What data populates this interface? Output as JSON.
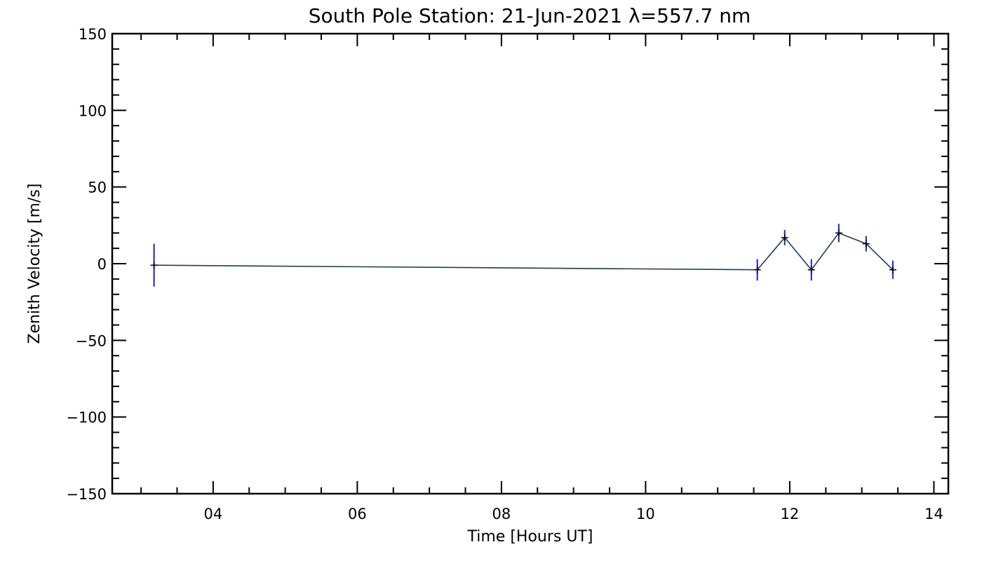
{
  "chart_data": {
    "type": "line",
    "title": "South Pole Station: 21-Jun-2021 λ=557.7 nm",
    "xlabel": "Time [Hours UT]",
    "ylabel": "Zenith Velocity [m/s]",
    "xlim": [
      2.6,
      14.2
    ],
    "ylim": [
      -150,
      150
    ],
    "x_ticks": [
      4,
      6,
      8,
      10,
      12,
      14
    ],
    "x_tick_labels": [
      "04",
      "06",
      "08",
      "10",
      "12",
      "14"
    ],
    "y_ticks": [
      -150,
      -100,
      -50,
      0,
      50,
      100,
      150
    ],
    "y_tick_labels": [
      "−150",
      "−100",
      "−50",
      "0",
      "50",
      "100",
      "150"
    ],
    "grid": false,
    "series": [
      {
        "name": "zenith velocity",
        "x": [
          3.18,
          11.55,
          11.93,
          12.3,
          12.68,
          13.06,
          13.43
        ],
        "y": [
          -1,
          -4,
          17,
          -4,
          20,
          13,
          -4
        ],
        "err": [
          14,
          7,
          5,
          7,
          6,
          5,
          6
        ]
      }
    ],
    "colors": {
      "line": "#1f3f4f",
      "error_bar": "#2020d0",
      "marker": "#000000",
      "axis": "#000000"
    }
  }
}
